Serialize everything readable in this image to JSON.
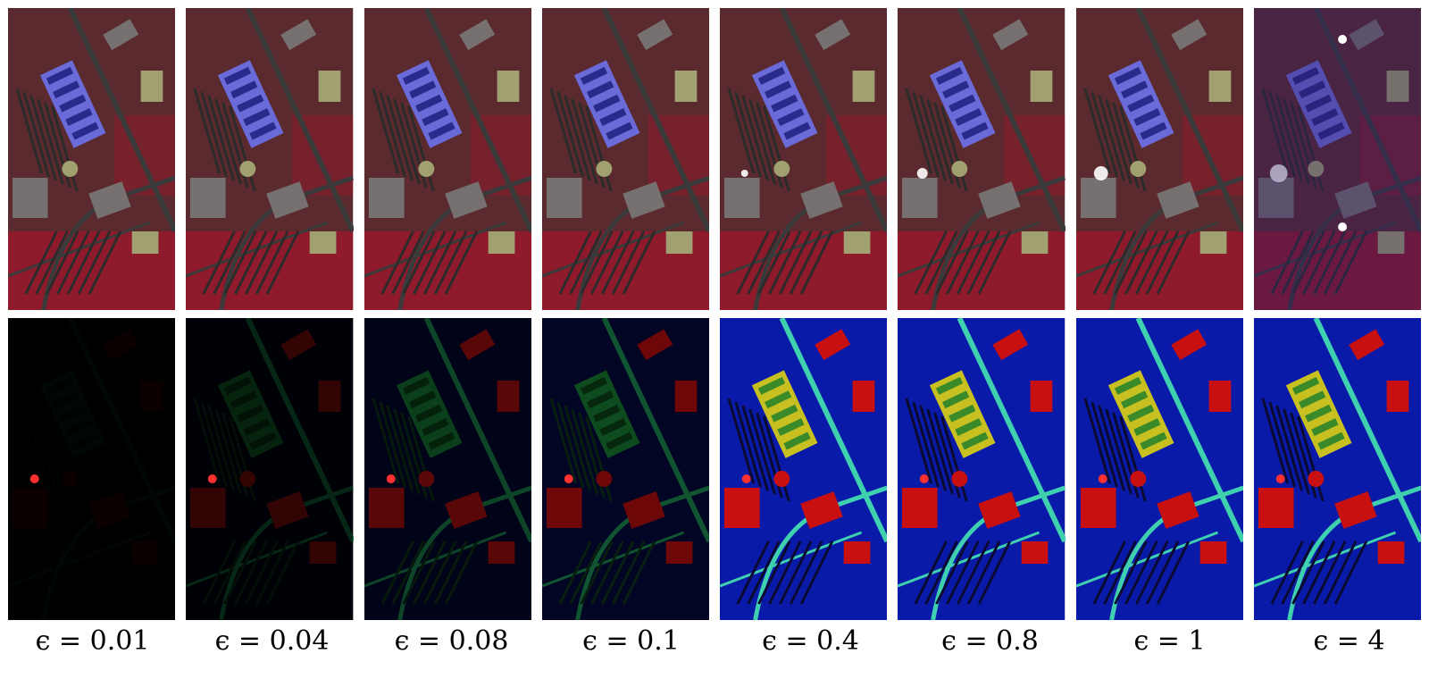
{
  "top_row": {
    "tiles": [
      {
        "id": "pc-0.01"
      },
      {
        "id": "pc-0.04"
      },
      {
        "id": "pc-0.08"
      },
      {
        "id": "pc-0.1"
      },
      {
        "id": "pc-0.4"
      },
      {
        "id": "pc-0.8"
      },
      {
        "id": "pc-1"
      },
      {
        "id": "pc-4"
      }
    ]
  },
  "bottom_row": {
    "tiles": [
      {
        "id": "res-0.01"
      },
      {
        "id": "res-0.04"
      },
      {
        "id": "res-0.08"
      },
      {
        "id": "res-0.1"
      },
      {
        "id": "res-0.4"
      },
      {
        "id": "res-0.8"
      },
      {
        "id": "res-1"
      },
      {
        "id": "res-4"
      }
    ]
  },
  "labels": [
    "ϵ = 0.01",
    "ϵ = 0.04",
    "ϵ = 0.08",
    "ϵ = 0.1",
    "ϵ = 0.4",
    "ϵ = 0.8",
    "ϵ = 1",
    "ϵ = 4"
  ],
  "colors": {
    "false_color_base": "#5a2a2e",
    "vegetation_red": "#b0112a",
    "roof_blue": "#6a6ad8",
    "residual_blue": "#0a1aa8",
    "residual_cyan": "#3fd0b0",
    "residual_red": "#c81010"
  }
}
